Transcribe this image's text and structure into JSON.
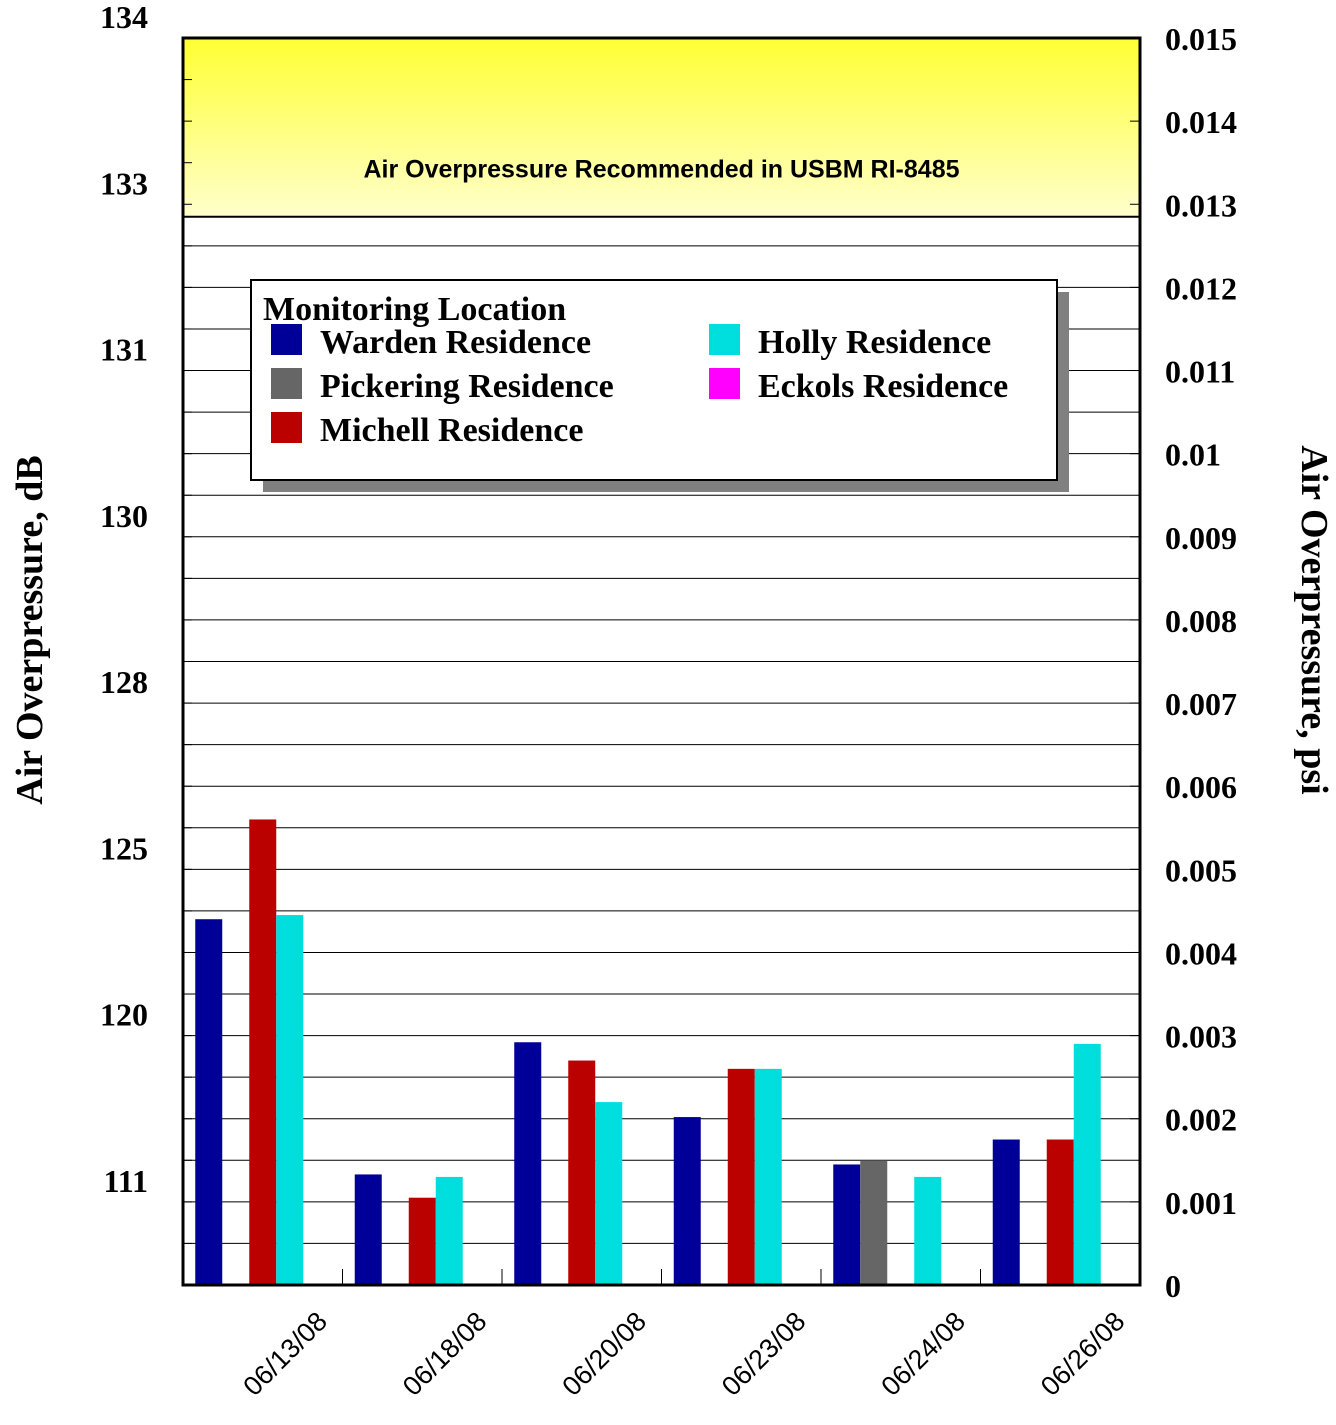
{
  "chart_data": {
    "type": "bar",
    "categories": [
      "06/13/08",
      "06/18/08",
      "06/20/08",
      "06/23/08",
      "06/24/08",
      "06/26/08"
    ],
    "series": [
      {
        "name": "Warden Residence",
        "color": "#000099",
        "values": [
          0.0044,
          0.00133,
          0.00292,
          0.00202,
          0.00145,
          0.00175
        ]
      },
      {
        "name": "Pickering Residence",
        "color": "#666666",
        "values": [
          null,
          null,
          null,
          null,
          0.0015,
          null
        ]
      },
      {
        "name": "Michell Residence",
        "color": "#bb0000",
        "values": [
          0.0056,
          0.00105,
          0.0027,
          0.0026,
          null,
          0.00175
        ]
      },
      {
        "name": "Holly Residence",
        "color": "#00dddd",
        "values": [
          0.00445,
          0.0013,
          0.0022,
          0.0026,
          0.0013,
          0.0029
        ]
      },
      {
        "name": "Eckols Residence",
        "color": "#ff00ff",
        "values": [
          null,
          null,
          null,
          null,
          null,
          null
        ]
      }
    ],
    "ylabel": "Air Overpressure, dB",
    "y2label": "Air Overpressure, psi",
    "ylim": [
      0,
      0.015
    ],
    "y2_ticks": [
      "0",
      "0.001",
      "0.002",
      "0.003",
      "0.004",
      "0.005",
      "0.006",
      "0.007",
      "0.008",
      "0.009",
      "0.01",
      "0.011",
      "0.012",
      "0.013",
      "0.014",
      "0.015"
    ],
    "y_db_ticks": [
      {
        "label": "134",
        "psi": 0.015
      },
      {
        "label": "133",
        "psi": 0.013
      },
      {
        "label": "131",
        "psi": 0.011
      },
      {
        "label": "130",
        "psi": 0.009
      },
      {
        "label": "128",
        "psi": 0.007
      },
      {
        "label": "125",
        "psi": 0.005
      },
      {
        "label": "120",
        "psi": 0.003
      },
      {
        "label": "111",
        "psi": 0.001
      }
    ],
    "threshold": {
      "from": 0.01285,
      "to": 0.015,
      "label": "Air Overpressure Recommended in USBM RI-8485",
      "color": "#ffff44"
    },
    "legend": {
      "title": "Monitoring Location",
      "position": "top-left"
    },
    "grid": true
  }
}
